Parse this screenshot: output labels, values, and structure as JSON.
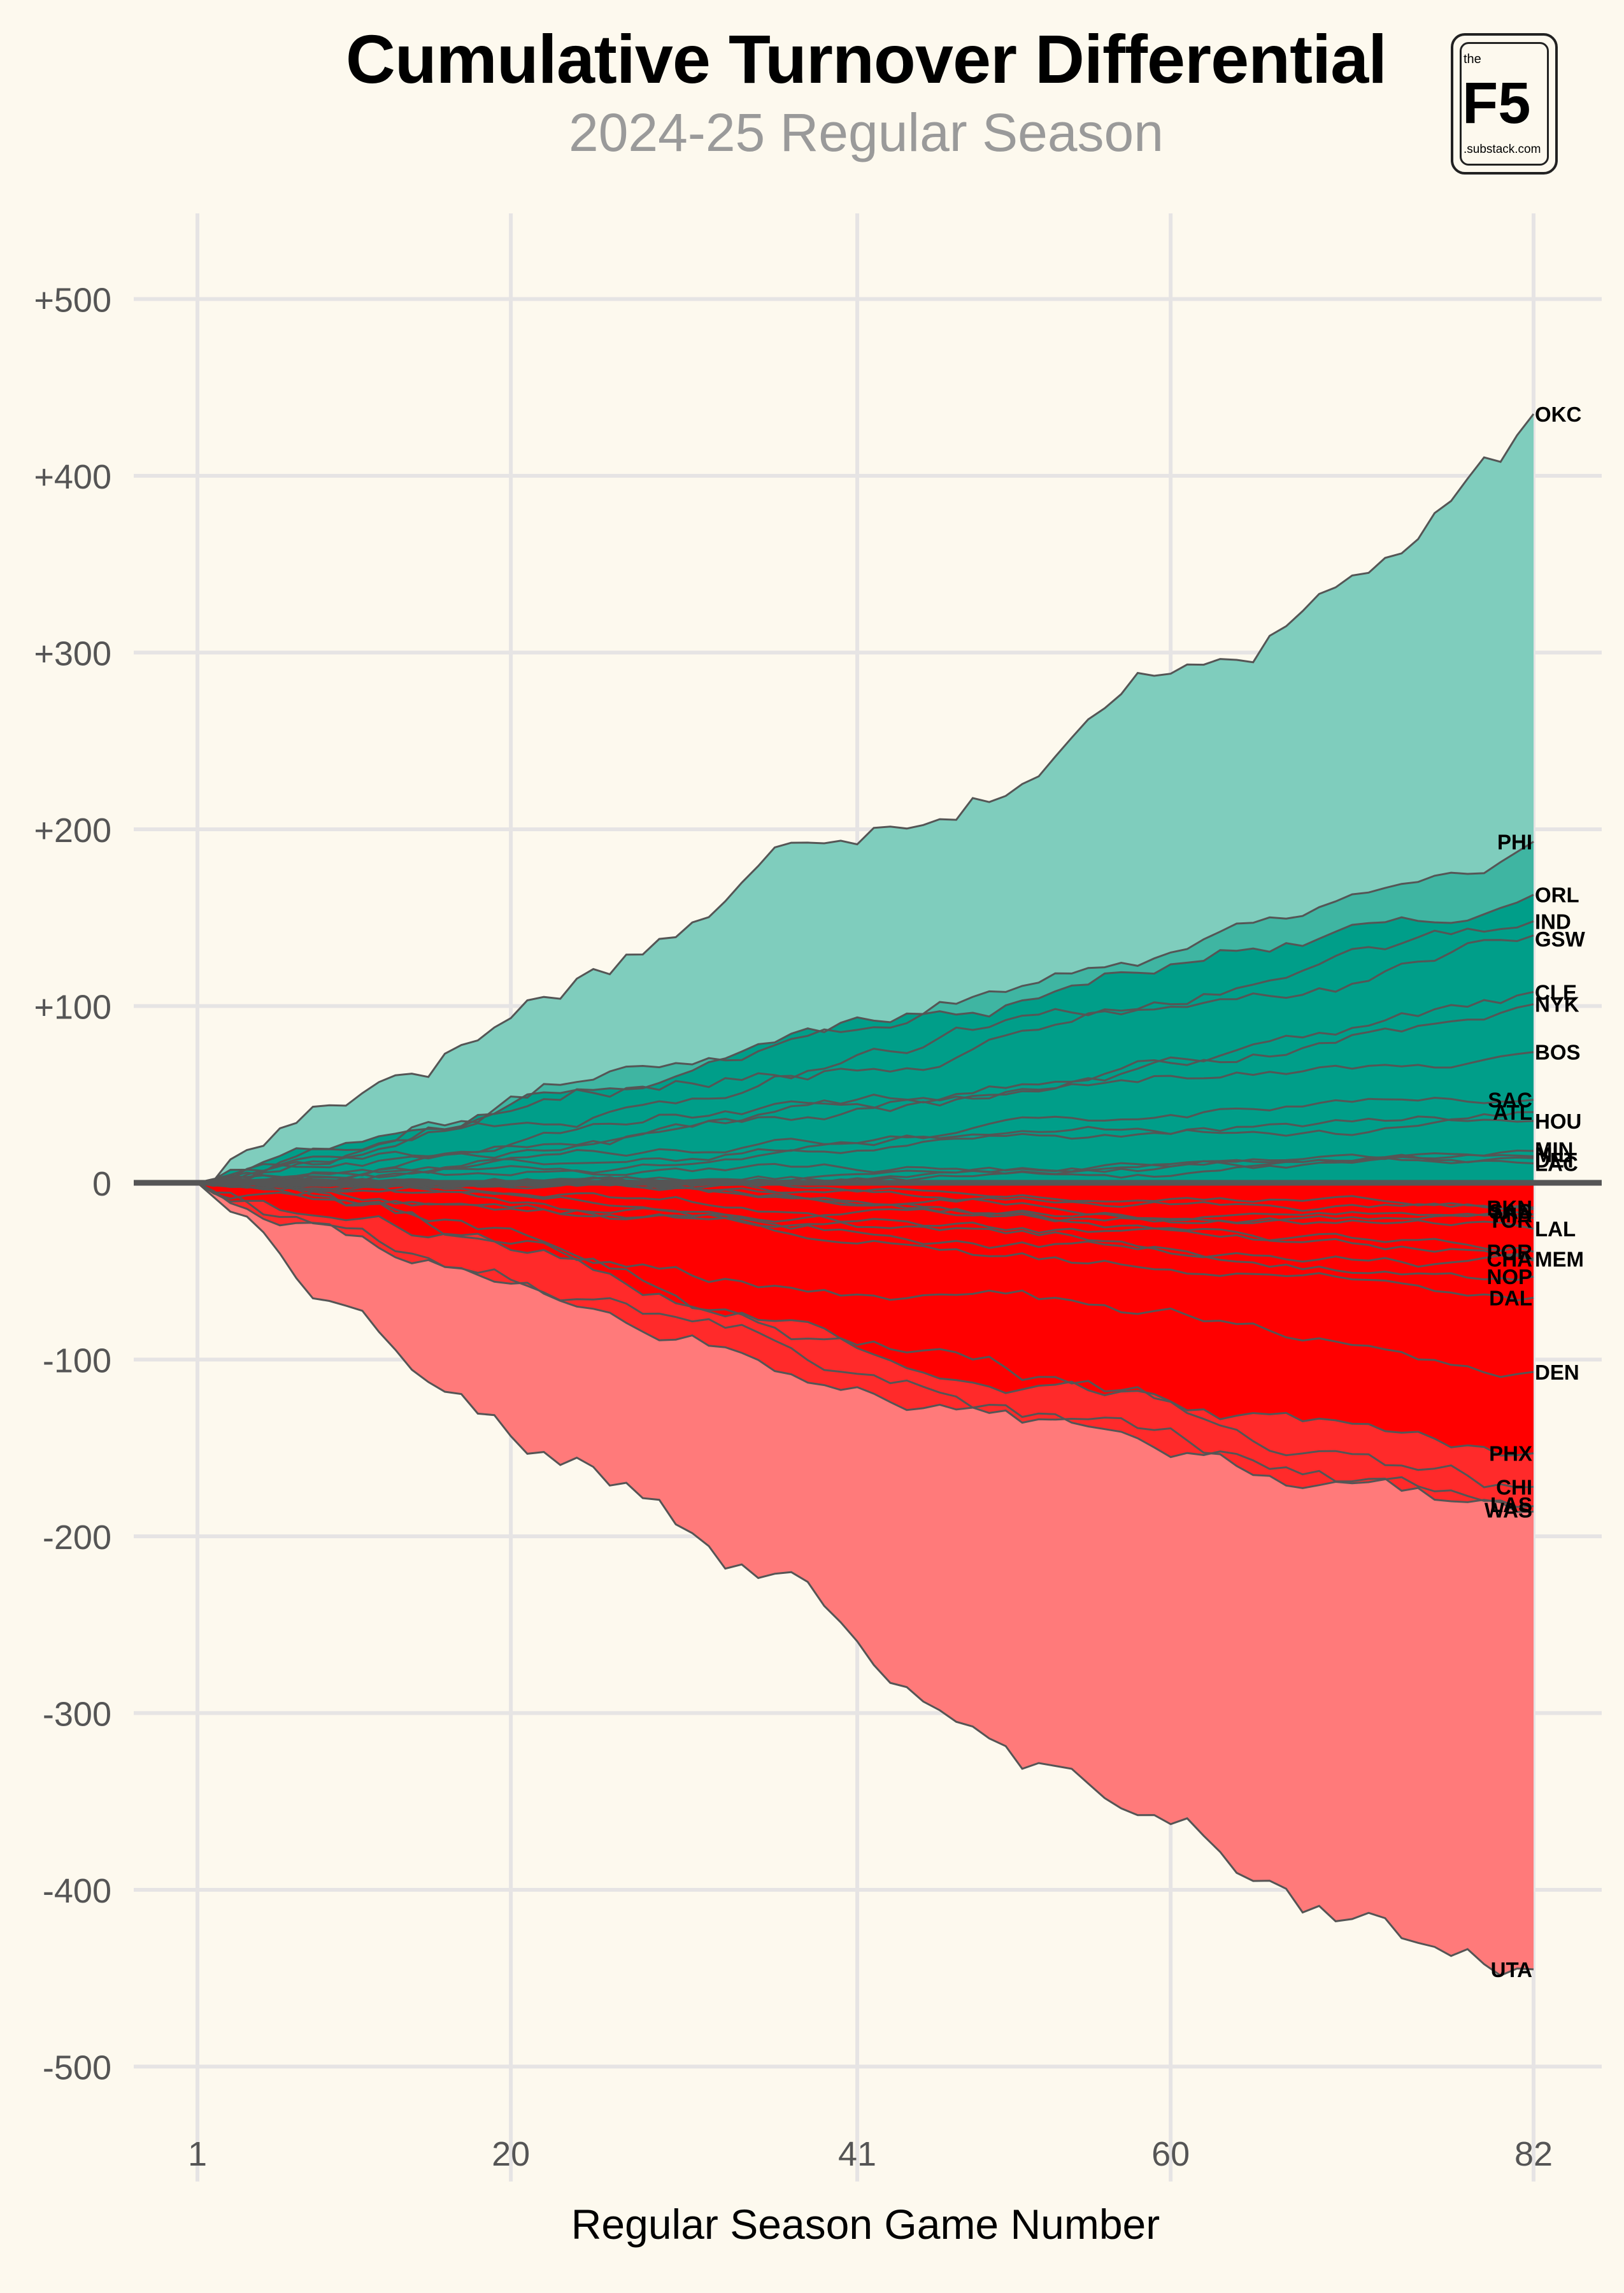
{
  "title": "Cumulative Turnover Differential",
  "subtitle": "2024-25 Regular Season",
  "logo": {
    "top": "the",
    "main": "F5",
    "bottom": ".substack.com"
  },
  "chart_data": {
    "type": "area",
    "title": "Cumulative Turnover Differential",
    "subtitle": "2024-25 Regular Season",
    "xlabel": "Regular Season Game Number",
    "ylabel": "",
    "xlim": [
      1,
      82
    ],
    "ylim": [
      -550,
      550
    ],
    "xticks": [
      1,
      20,
      41,
      60,
      82
    ],
    "xtick_labels": [
      "1",
      "20",
      "41",
      "60",
      "82"
    ],
    "yticks": [
      500,
      400,
      300,
      200,
      100,
      0,
      -100,
      -200,
      -300,
      -400,
      -500
    ],
    "ytick_labels": [
      "+500",
      "+400",
      "+300",
      "+200",
      "+100",
      "0",
      "-100",
      "-200",
      "-300",
      "-400",
      "-500"
    ],
    "grid": true,
    "colors": {
      "positive_outer": "#7fcdbd",
      "positive_mid": "#3fb5a2",
      "positive_core": "#009e89",
      "negative_core": "#ff0000",
      "negative_mid": "#ff2a2a",
      "negative_outer": "#ff7a7a",
      "line": "#555555",
      "background": "#fdf9ee"
    },
    "series": [
      {
        "name": "OKC",
        "final": 435
      },
      {
        "name": "PHI",
        "final": 193
      },
      {
        "name": "ORL",
        "final": 163
      },
      {
        "name": "IND",
        "final": 148
      },
      {
        "name": "GSW",
        "final": 140
      },
      {
        "name": "CLE",
        "final": 108
      },
      {
        "name": "NYK",
        "final": 101
      },
      {
        "name": "BOS",
        "final": 74
      },
      {
        "name": "SAC",
        "final": 47
      },
      {
        "name": "HOU",
        "final": 35
      },
      {
        "name": "ATL",
        "final": 40
      },
      {
        "name": "MIN",
        "final": 18
      },
      {
        "name": "MIL",
        "final": 14
      },
      {
        "name": "DET",
        "final": 15
      },
      {
        "name": "LAC",
        "final": 11
      },
      {
        "name": "BKN",
        "final": -14
      },
      {
        "name": "SAS",
        "final": -15
      },
      {
        "name": "MIA",
        "final": -18
      },
      {
        "name": "TOR",
        "final": -20
      },
      {
        "name": "LAL",
        "final": -26
      },
      {
        "name": "POR",
        "final": -39
      },
      {
        "name": "CHA",
        "final": -43
      },
      {
        "name": "MEM",
        "final": -44
      },
      {
        "name": "NOP",
        "final": -53
      },
      {
        "name": "DAL",
        "final": -65
      },
      {
        "name": "DEN",
        "final": -107
      },
      {
        "name": "PHX",
        "final": -153
      },
      {
        "name": "CHI",
        "final": -172
      },
      {
        "name": "LAS",
        "final": -183
      },
      {
        "name": "WAS",
        "final": -186
      },
      {
        "name": "UTA",
        "final": -445
      }
    ],
    "labels": [
      {
        "text": "OKC",
        "x": 82,
        "y": 435,
        "side": "right"
      },
      {
        "text": "PHI",
        "x": 82,
        "y": 193,
        "side": "left"
      },
      {
        "text": "ORL",
        "x": 82,
        "y": 163,
        "side": "right"
      },
      {
        "text": "IND",
        "x": 82,
        "y": 148,
        "side": "right"
      },
      {
        "text": "GSW",
        "x": 82,
        "y": 138,
        "side": "right"
      },
      {
        "text": "CLE",
        "x": 82,
        "y": 108,
        "side": "right"
      },
      {
        "text": "NYK",
        "x": 82,
        "y": 101,
        "side": "right"
      },
      {
        "text": "BOS",
        "x": 82,
        "y": 74,
        "side": "right"
      },
      {
        "text": "SAC",
        "x": 82,
        "y": 47,
        "side": "left"
      },
      {
        "text": "ATL",
        "x": 82,
        "y": 40,
        "side": "left"
      },
      {
        "text": "HOU",
        "x": 82,
        "y": 35,
        "side": "right"
      },
      {
        "text": "MIN",
        "x": 82,
        "y": 19,
        "side": "right"
      },
      {
        "text": "MIL",
        "x": 82,
        "y": 16,
        "side": "right"
      },
      {
        "text": "DET",
        "x": 82,
        "y": 13,
        "side": "right"
      },
      {
        "text": "LAC",
        "x": 82,
        "y": 11,
        "side": "right"
      },
      {
        "text": "BKN",
        "x": 82,
        "y": -14,
        "side": "left"
      },
      {
        "text": "SAS",
        "x": 82,
        "y": -16,
        "side": "left"
      },
      {
        "text": "MIA",
        "x": 82,
        "y": -18,
        "side": "left"
      },
      {
        "text": "TOR",
        "x": 82,
        "y": -21,
        "side": "left"
      },
      {
        "text": "LAL",
        "x": 82,
        "y": -26,
        "side": "right"
      },
      {
        "text": "POR",
        "x": 82,
        "y": -39,
        "side": "left"
      },
      {
        "text": "CHA",
        "x": 82,
        "y": -43,
        "side": "left"
      },
      {
        "text": "MEM",
        "x": 82,
        "y": -43,
        "side": "right"
      },
      {
        "text": "NOP",
        "x": 82,
        "y": -53,
        "side": "left"
      },
      {
        "text": "DAL",
        "x": 82,
        "y": -65,
        "side": "left"
      },
      {
        "text": "DEN",
        "x": 82,
        "y": -107,
        "side": "right"
      },
      {
        "text": "PHX",
        "x": 82,
        "y": -153,
        "side": "left"
      },
      {
        "text": "CHI",
        "x": 82,
        "y": -172,
        "side": "left"
      },
      {
        "text": "LAS",
        "x": 82,
        "y": -182,
        "side": "left"
      },
      {
        "text": "WAS",
        "x": 82,
        "y": -185,
        "side": "left"
      },
      {
        "text": "UTA",
        "x": 82,
        "y": -445,
        "side": "left"
      }
    ]
  }
}
